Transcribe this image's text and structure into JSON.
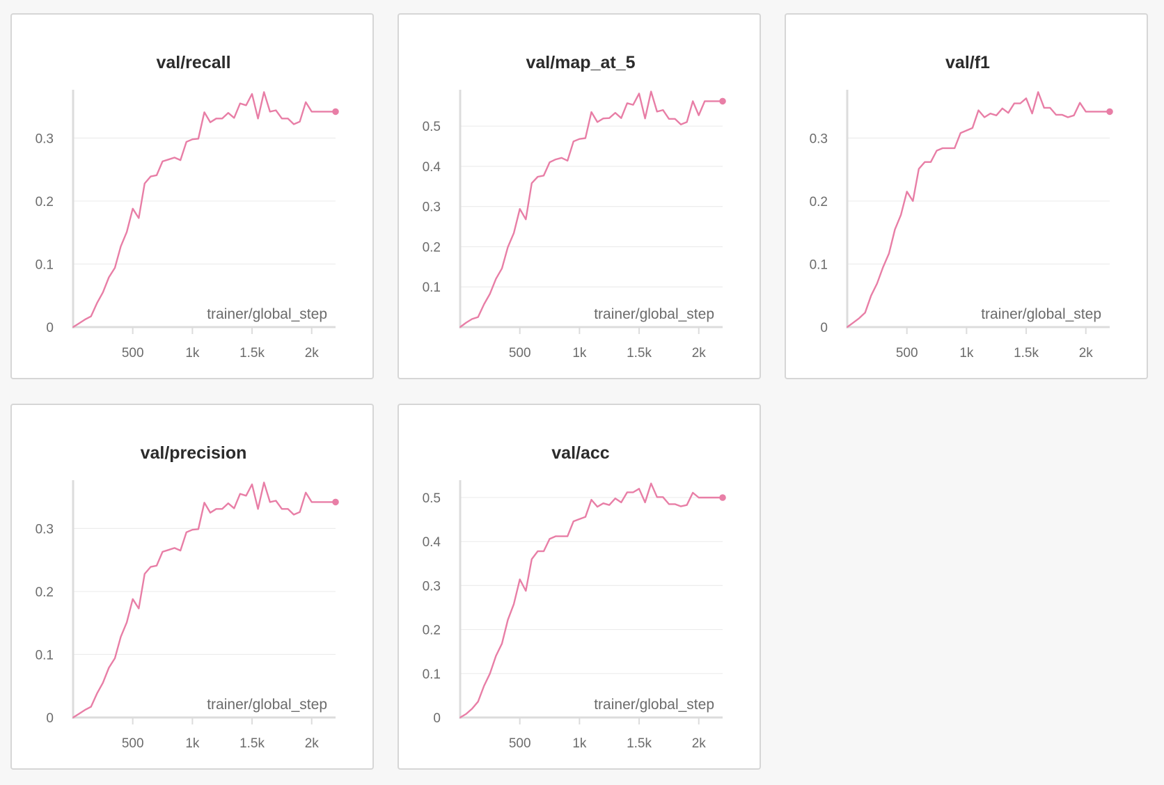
{
  "chart_data": [
    {
      "type": "line",
      "title": "val/recall",
      "xlabel": "trainer/global_step",
      "ylabel": "",
      "color": "#e87ea6",
      "xlim": [
        0,
        2200
      ],
      "ylim": [
        0,
        0.37
      ],
      "x_ticks": [
        500,
        1000,
        1500,
        2000
      ],
      "x_tick_labels": [
        "500",
        "1k",
        "1.5k",
        "2k"
      ],
      "y_ticks": [
        0,
        0.1,
        0.2,
        0.3
      ],
      "y_tick_labels": [
        "0",
        "0.1",
        "0.2",
        "0.3"
      ],
      "x": [
        0,
        50,
        100,
        150,
        200,
        250,
        300,
        350,
        400,
        450,
        500,
        550,
        600,
        650,
        700,
        750,
        800,
        850,
        900,
        950,
        1000,
        1050,
        1100,
        1150,
        1200,
        1250,
        1300,
        1350,
        1400,
        1450,
        1500,
        1550,
        1600,
        1650,
        1700,
        1750,
        1800,
        1850,
        1900,
        1950,
        2000,
        2050,
        2100,
        2150,
        2200
      ],
      "y": [
        0,
        0.006,
        0.012,
        0.017,
        0.038,
        0.055,
        0.079,
        0.094,
        0.128,
        0.151,
        0.188,
        0.173,
        0.228,
        0.239,
        0.241,
        0.263,
        0.266,
        0.269,
        0.265,
        0.294,
        0.298,
        0.299,
        0.341,
        0.325,
        0.331,
        0.331,
        0.34,
        0.332,
        0.355,
        0.352,
        0.37,
        0.331,
        0.373,
        0.342,
        0.344,
        0.331,
        0.331,
        0.322,
        0.326,
        0.357,
        0.342,
        0.342,
        0.342,
        0.342,
        0.342
      ],
      "grid": true
    },
    {
      "type": "line",
      "title": "val/map_at_5",
      "xlabel": "trainer/global_step",
      "ylabel": "",
      "color": "#e87ea6",
      "xlim": [
        0,
        2200
      ],
      "ylim": [
        0,
        0.58
      ],
      "x_ticks": [
        500,
        1000,
        1500,
        2000
      ],
      "x_tick_labels": [
        "500",
        "1k",
        "1.5k",
        "2k"
      ],
      "y_ticks": [
        0.1,
        0.2,
        0.3,
        0.4,
        0.5
      ],
      "y_tick_labels": [
        "0.1",
        "0.2",
        "0.3",
        "0.4",
        "0.5"
      ],
      "x": [
        0,
        50,
        100,
        150,
        200,
        250,
        300,
        350,
        400,
        450,
        500,
        550,
        600,
        650,
        700,
        750,
        800,
        850,
        900,
        950,
        1000,
        1050,
        1100,
        1150,
        1200,
        1250,
        1300,
        1350,
        1400,
        1450,
        1500,
        1550,
        1600,
        1650,
        1700,
        1750,
        1800,
        1850,
        1900,
        1950,
        2000,
        2050,
        2100,
        2150,
        2200
      ],
      "y": [
        0,
        0.011,
        0.02,
        0.025,
        0.057,
        0.083,
        0.12,
        0.146,
        0.199,
        0.234,
        0.294,
        0.268,
        0.358,
        0.374,
        0.377,
        0.41,
        0.417,
        0.421,
        0.414,
        0.462,
        0.468,
        0.47,
        0.535,
        0.51,
        0.519,
        0.52,
        0.533,
        0.52,
        0.557,
        0.553,
        0.581,
        0.519,
        0.586,
        0.536,
        0.54,
        0.518,
        0.518,
        0.504,
        0.51,
        0.562,
        0.527,
        0.562,
        0.562,
        0.562,
        0.562
      ],
      "grid": true
    },
    {
      "type": "line",
      "title": "val/f1",
      "xlabel": "trainer/global_step",
      "ylabel": "",
      "color": "#e87ea6",
      "xlim": [
        0,
        2200
      ],
      "ylim": [
        0,
        0.37
      ],
      "x_ticks": [
        500,
        1000,
        1500,
        2000
      ],
      "x_tick_labels": [
        "500",
        "1k",
        "1.5k",
        "2k"
      ],
      "y_ticks": [
        0,
        0.1,
        0.2,
        0.3
      ],
      "y_tick_labels": [
        "0",
        "0.1",
        "0.2",
        "0.3"
      ],
      "x": [
        0,
        50,
        100,
        150,
        200,
        250,
        300,
        350,
        400,
        450,
        500,
        550,
        600,
        650,
        700,
        750,
        800,
        850,
        900,
        950,
        1000,
        1050,
        1100,
        1150,
        1200,
        1250,
        1300,
        1350,
        1400,
        1450,
        1500,
        1550,
        1600,
        1650,
        1700,
        1750,
        1800,
        1850,
        1900,
        1950,
        2000,
        2050,
        2100,
        2150,
        2200
      ],
      "y": [
        0,
        0.007,
        0.014,
        0.023,
        0.05,
        0.069,
        0.095,
        0.117,
        0.155,
        0.178,
        0.215,
        0.2,
        0.251,
        0.262,
        0.262,
        0.28,
        0.284,
        0.284,
        0.284,
        0.308,
        0.312,
        0.316,
        0.344,
        0.333,
        0.339,
        0.336,
        0.347,
        0.34,
        0.355,
        0.355,
        0.363,
        0.339,
        0.373,
        0.348,
        0.348,
        0.337,
        0.337,
        0.333,
        0.336,
        0.356,
        0.342,
        0.342,
        0.342,
        0.342,
        0.342
      ],
      "grid": true
    },
    {
      "type": "line",
      "title": "val/precision",
      "xlabel": "trainer/global_step",
      "ylabel": "",
      "color": "#e87ea6",
      "xlim": [
        0,
        2200
      ],
      "ylim": [
        0,
        0.37
      ],
      "x_ticks": [
        500,
        1000,
        1500,
        2000
      ],
      "x_tick_labels": [
        "500",
        "1k",
        "1.5k",
        "2k"
      ],
      "y_ticks": [
        0,
        0.1,
        0.2,
        0.3
      ],
      "y_tick_labels": [
        "0",
        "0.1",
        "0.2",
        "0.3"
      ],
      "x": [
        0,
        50,
        100,
        150,
        200,
        250,
        300,
        350,
        400,
        450,
        500,
        550,
        600,
        650,
        700,
        750,
        800,
        850,
        900,
        950,
        1000,
        1050,
        1100,
        1150,
        1200,
        1250,
        1300,
        1350,
        1400,
        1450,
        1500,
        1550,
        1600,
        1650,
        1700,
        1750,
        1800,
        1850,
        1900,
        1950,
        2000,
        2050,
        2100,
        2150,
        2200
      ],
      "y": [
        0,
        0.006,
        0.012,
        0.017,
        0.038,
        0.055,
        0.079,
        0.094,
        0.128,
        0.151,
        0.188,
        0.173,
        0.228,
        0.239,
        0.241,
        0.263,
        0.266,
        0.269,
        0.265,
        0.294,
        0.298,
        0.299,
        0.341,
        0.325,
        0.331,
        0.331,
        0.34,
        0.332,
        0.355,
        0.352,
        0.37,
        0.331,
        0.373,
        0.342,
        0.344,
        0.331,
        0.331,
        0.322,
        0.326,
        0.357,
        0.342,
        0.342,
        0.342,
        0.342,
        0.342
      ],
      "grid": true
    },
    {
      "type": "line",
      "title": "val/acc",
      "xlabel": "trainer/global_step",
      "ylabel": "",
      "color": "#e87ea6",
      "xlim": [
        0,
        2200
      ],
      "ylim": [
        0,
        0.53
      ],
      "x_ticks": [
        500,
        1000,
        1500,
        2000
      ],
      "x_tick_labels": [
        "500",
        "1k",
        "1.5k",
        "2k"
      ],
      "y_ticks": [
        0,
        0.1,
        0.2,
        0.3,
        0.4,
        0.5
      ],
      "y_tick_labels": [
        "0",
        "0.1",
        "0.2",
        "0.3",
        "0.4",
        "0.5"
      ],
      "x": [
        0,
        50,
        100,
        150,
        200,
        250,
        300,
        350,
        400,
        450,
        500,
        550,
        600,
        650,
        700,
        750,
        800,
        850,
        900,
        950,
        1000,
        1050,
        1100,
        1150,
        1200,
        1250,
        1300,
        1350,
        1400,
        1450,
        1500,
        1550,
        1600,
        1650,
        1700,
        1750,
        1800,
        1850,
        1900,
        1950,
        2000,
        2050,
        2100,
        2150,
        2200
      ],
      "y": [
        0,
        0.008,
        0.02,
        0.036,
        0.072,
        0.1,
        0.14,
        0.168,
        0.222,
        0.258,
        0.314,
        0.288,
        0.36,
        0.378,
        0.378,
        0.406,
        0.412,
        0.412,
        0.412,
        0.446,
        0.451,
        0.456,
        0.495,
        0.479,
        0.487,
        0.483,
        0.498,
        0.489,
        0.512,
        0.512,
        0.52,
        0.489,
        0.532,
        0.501,
        0.501,
        0.485,
        0.485,
        0.48,
        0.483,
        0.511,
        0.5,
        0.5,
        0.5,
        0.5,
        0.5
      ],
      "grid": true
    }
  ]
}
